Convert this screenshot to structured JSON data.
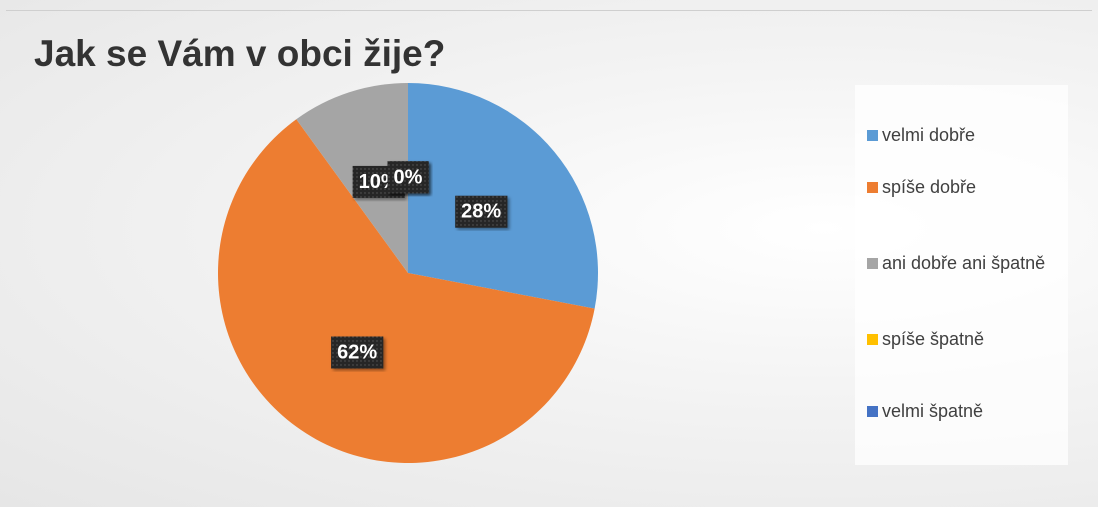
{
  "chart_data": {
    "type": "pie",
    "title": "Jak se Vám v obci žije?",
    "categories": [
      "velmi dobře",
      "spíše dobře",
      "ani dobře ani špatně",
      "spíše špatně",
      "velmi špatně"
    ],
    "values": [
      28,
      62,
      10,
      0,
      0
    ],
    "value_labels": [
      "28%",
      "62%",
      "10%",
      "0%",
      "0%"
    ],
    "colors": [
      "#5b9bd5",
      "#ed7d31",
      "#a5a5a5",
      "#ffc000",
      "#4472c4"
    ],
    "legend": "right"
  }
}
